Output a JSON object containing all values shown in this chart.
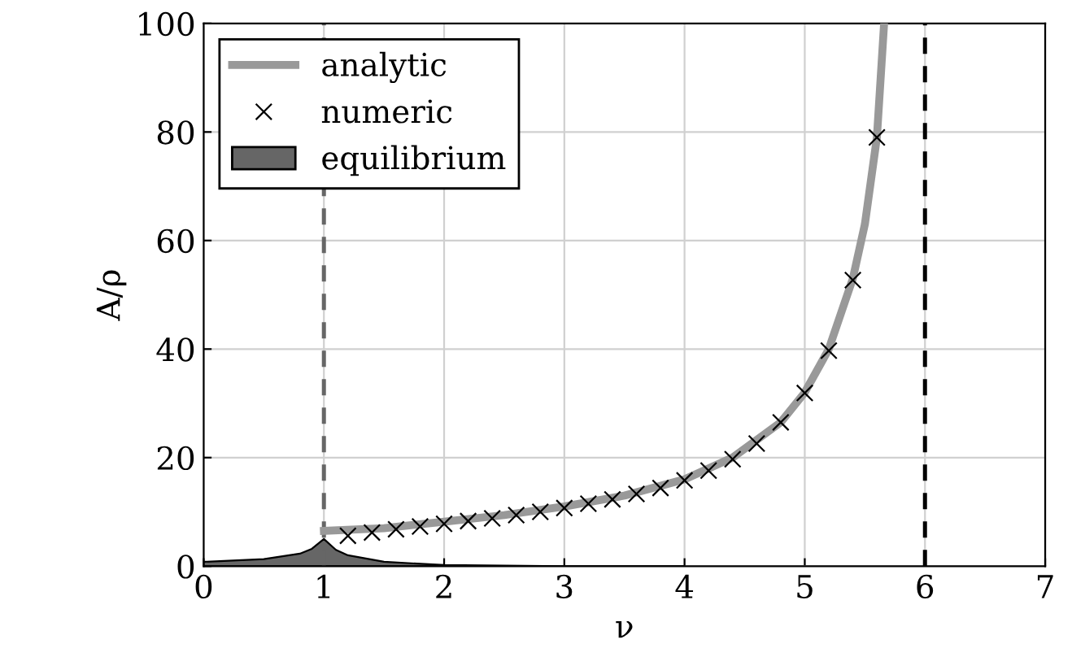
{
  "chart_data": {
    "type": "line",
    "xlabel": "ν",
    "ylabel": "A/ρ",
    "xlim": [
      0,
      7
    ],
    "ylim": [
      0,
      100
    ],
    "xticks": [
      0,
      1,
      2,
      3,
      4,
      5,
      6,
      7
    ],
    "yticks": [
      0,
      20,
      40,
      60,
      80,
      100
    ],
    "grid": true,
    "legend": "top left",
    "series": [
      {
        "name": "analytic",
        "color": "#999999",
        "x": [
          1,
          1.5,
          2,
          2.5,
          3,
          3.5,
          4,
          4.4,
          4.8,
          5,
          5.2,
          5.4,
          5.5,
          5.6,
          5.66
        ],
        "values": [
          6.5,
          7,
          8.2,
          9.4,
          11,
          13,
          16,
          20,
          26.5,
          32,
          40,
          53,
          63,
          79,
          100
        ]
      },
      {
        "name": "numeric",
        "type": "scatter",
        "marker": "cross",
        "color": "#000000",
        "x": [
          1.2,
          1.4,
          1.6,
          1.8,
          2.0,
          2.2,
          2.4,
          2.6,
          2.8,
          3.0,
          3.2,
          3.4,
          3.6,
          3.8,
          4.0,
          4.2,
          4.4,
          4.6,
          4.8,
          5.0,
          5.2,
          5.4,
          5.6
        ],
        "values": [
          5.6,
          6.2,
          6.8,
          7.3,
          7.8,
          8.3,
          8.8,
          9.4,
          10.0,
          10.7,
          11.5,
          12.3,
          13.3,
          14.4,
          15.8,
          17.6,
          19.7,
          22.6,
          26.5,
          31.9,
          39.7,
          52.7,
          79
        ]
      },
      {
        "name": "equilibrium",
        "type": "area",
        "color": "#666666",
        "x": [
          0,
          0.5,
          0.8,
          0.9,
          1.0,
          1.1,
          1.2,
          1.5,
          2,
          3,
          4
        ],
        "values": [
          0.8,
          1.3,
          2.3,
          3.2,
          5.0,
          3.0,
          2.0,
          0.8,
          0.2,
          0,
          0
        ]
      }
    ],
    "ref_lines": [
      {
        "axis": "x",
        "value": 1,
        "color": "#666666",
        "line_style": "dashed"
      },
      {
        "axis": "x",
        "value": 6,
        "color": "#000000",
        "line_style": "dashed"
      }
    ]
  }
}
